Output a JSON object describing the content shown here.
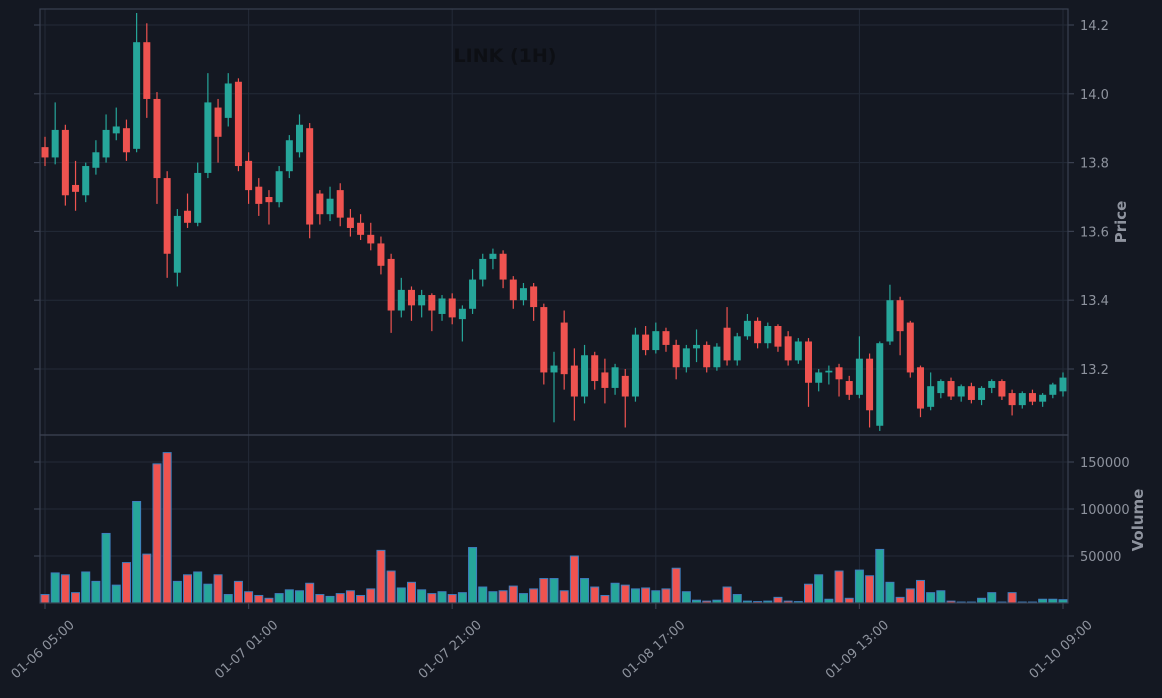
{
  "title": "LINK (1H)",
  "colors": {
    "background": "#141822",
    "up": "#26a69a",
    "down": "#ef5350",
    "grid": "#232a38",
    "frame": "#3a4050",
    "tick_label": "#8e939e",
    "axis_label": "#8e939e",
    "title_color": "#0d0f14",
    "volume_bar_edge": "#3f7fbf"
  },
  "price_axis": {
    "label": "Price",
    "ticks": [
      14.2,
      14.0,
      13.8,
      13.6,
      13.4,
      13.2
    ],
    "range": [
      13.0,
      14.245
    ]
  },
  "volume_axis": {
    "label": "Volume",
    "ticks": [
      150000,
      100000,
      50000
    ],
    "range": [
      0,
      175000
    ]
  },
  "x_axis": {
    "tick_indices": [
      0,
      20,
      40,
      60,
      80,
      100
    ],
    "tick_labels": [
      "01-06 05:00",
      "01-07 01:00",
      "01-07 21:00",
      "01-08 17:00",
      "01-09 13:00",
      "01-10 09:00"
    ]
  },
  "chart_data": {
    "type": "candlestick",
    "symbol": "LINK",
    "interval": "1H",
    "start_time": "01-06 05:00",
    "end_time": "01-10 09:00",
    "panels": [
      "price",
      "volume"
    ],
    "ohlcv_columns": [
      "open",
      "high",
      "low",
      "close",
      "volume"
    ],
    "ohlcv": [
      [
        13.845,
        13.875,
        13.79,
        13.815,
        9000
      ],
      [
        13.815,
        13.975,
        13.795,
        13.895,
        32000
      ],
      [
        13.895,
        13.91,
        13.675,
        13.705,
        30000
      ],
      [
        13.735,
        13.805,
        13.66,
        13.715,
        11000
      ],
      [
        13.705,
        13.8,
        13.685,
        13.79,
        33000
      ],
      [
        13.785,
        13.865,
        13.765,
        13.83,
        23000
      ],
      [
        13.815,
        13.94,
        13.8,
        13.895,
        74000
      ],
      [
        13.885,
        13.96,
        13.865,
        13.905,
        19000
      ],
      [
        13.9,
        13.925,
        13.805,
        13.83,
        43000
      ],
      [
        13.84,
        14.235,
        13.83,
        14.15,
        108000
      ],
      [
        14.15,
        14.205,
        13.93,
        13.985,
        52000
      ],
      [
        13.985,
        14.005,
        13.68,
        13.755,
        148000
      ],
      [
        13.755,
        13.775,
        13.465,
        13.535,
        160000
      ],
      [
        13.48,
        13.665,
        13.44,
        13.645,
        23000
      ],
      [
        13.66,
        13.71,
        13.61,
        13.625,
        30000
      ],
      [
        13.625,
        13.8,
        13.615,
        13.77,
        33000
      ],
      [
        13.77,
        14.06,
        13.755,
        13.975,
        20000
      ],
      [
        13.96,
        13.985,
        13.8,
        13.875,
        30000
      ],
      [
        13.93,
        14.06,
        13.905,
        14.03,
        9000
      ],
      [
        14.035,
        14.045,
        13.775,
        13.79,
        23000
      ],
      [
        13.805,
        13.83,
        13.68,
        13.72,
        12000
      ],
      [
        13.73,
        13.755,
        13.645,
        13.68,
        8000
      ],
      [
        13.7,
        13.72,
        13.62,
        13.685,
        5000
      ],
      [
        13.685,
        13.79,
        13.67,
        13.775,
        10000
      ],
      [
        13.775,
        13.88,
        13.755,
        13.865,
        14000
      ],
      [
        13.83,
        13.94,
        13.815,
        13.91,
        13000
      ],
      [
        13.9,
        13.915,
        13.58,
        13.62,
        21000
      ],
      [
        13.71,
        13.72,
        13.62,
        13.65,
        9000
      ],
      [
        13.65,
        13.73,
        13.63,
        13.695,
        7000
      ],
      [
        13.72,
        13.74,
        13.615,
        13.64,
        10000
      ],
      [
        13.64,
        13.665,
        13.585,
        13.61,
        13000
      ],
      [
        13.625,
        13.65,
        13.575,
        13.59,
        8000
      ],
      [
        13.59,
        13.625,
        13.545,
        13.565,
        15000
      ],
      [
        13.565,
        13.585,
        13.475,
        13.5,
        56000
      ],
      [
        13.52,
        13.535,
        13.305,
        13.37,
        34000
      ],
      [
        13.37,
        13.465,
        13.35,
        13.43,
        16000
      ],
      [
        13.43,
        13.44,
        13.34,
        13.385,
        22000
      ],
      [
        13.385,
        13.43,
        13.35,
        13.415,
        14000
      ],
      [
        13.415,
        13.42,
        13.31,
        13.37,
        10000
      ],
      [
        13.36,
        13.415,
        13.34,
        13.405,
        12000
      ],
      [
        13.405,
        13.42,
        13.33,
        13.35,
        9000
      ],
      [
        13.345,
        13.385,
        13.28,
        13.375,
        11000
      ],
      [
        13.375,
        13.49,
        13.36,
        13.46,
        59000
      ],
      [
        13.46,
        13.535,
        13.44,
        13.52,
        17000
      ],
      [
        13.52,
        13.55,
        13.49,
        13.535,
        12000
      ],
      [
        13.535,
        13.545,
        13.435,
        13.46,
        13000
      ],
      [
        13.46,
        13.47,
        13.375,
        13.4,
        18000
      ],
      [
        13.4,
        13.45,
        13.385,
        13.435,
        10000
      ],
      [
        13.44,
        13.45,
        13.34,
        13.38,
        15000
      ],
      [
        13.38,
        13.39,
        13.155,
        13.19,
        26000
      ],
      [
        13.19,
        13.25,
        13.045,
        13.21,
        26000
      ],
      [
        13.335,
        13.37,
        13.14,
        13.185,
        13000
      ],
      [
        13.21,
        13.26,
        13.05,
        13.12,
        50000
      ],
      [
        13.12,
        13.27,
        13.1,
        13.24,
        26000
      ],
      [
        13.24,
        13.25,
        13.14,
        13.165,
        17000
      ],
      [
        13.19,
        13.23,
        13.1,
        13.145,
        8000
      ],
      [
        13.145,
        13.215,
        13.125,
        13.205,
        21000
      ],
      [
        13.18,
        13.2,
        13.03,
        13.12,
        19000
      ],
      [
        13.12,
        13.32,
        13.105,
        13.3,
        15000
      ],
      [
        13.3,
        13.325,
        13.24,
        13.255,
        16000
      ],
      [
        13.255,
        13.335,
        13.245,
        13.31,
        13000
      ],
      [
        13.31,
        13.32,
        13.25,
        13.27,
        15000
      ],
      [
        13.27,
        13.285,
        13.17,
        13.205,
        37000
      ],
      [
        13.205,
        13.27,
        13.19,
        13.26,
        12000
      ],
      [
        13.26,
        13.315,
        13.22,
        13.27,
        3000
      ],
      [
        13.27,
        13.28,
        13.19,
        13.205,
        2000
      ],
      [
        13.205,
        13.275,
        13.195,
        13.265,
        3000
      ],
      [
        13.32,
        13.38,
        13.21,
        13.225,
        17000
      ],
      [
        13.225,
        13.305,
        13.21,
        13.295,
        9000
      ],
      [
        13.295,
        13.36,
        13.285,
        13.34,
        2000
      ],
      [
        13.34,
        13.35,
        13.26,
        13.275,
        1500
      ],
      [
        13.275,
        13.335,
        13.26,
        13.325,
        2000
      ],
      [
        13.325,
        13.33,
        13.25,
        13.265,
        6000
      ],
      [
        13.295,
        13.31,
        13.21,
        13.225,
        2000
      ],
      [
        13.225,
        13.29,
        13.215,
        13.28,
        1500
      ],
      [
        13.28,
        13.29,
        13.09,
        13.16,
        20000
      ],
      [
        13.16,
        13.2,
        13.135,
        13.19,
        30000
      ],
      [
        13.19,
        13.21,
        13.155,
        13.195,
        4000
      ],
      [
        13.205,
        13.215,
        13.12,
        13.17,
        34000
      ],
      [
        13.165,
        13.18,
        13.11,
        13.125,
        5000
      ],
      [
        13.125,
        13.295,
        13.115,
        13.23,
        35000
      ],
      [
        13.23,
        13.245,
        13.03,
        13.08,
        29000
      ],
      [
        13.035,
        13.28,
        13.02,
        13.275,
        57000
      ],
      [
        13.28,
        13.445,
        13.27,
        13.4,
        22000
      ],
      [
        13.4,
        13.41,
        13.24,
        13.31,
        6000
      ],
      [
        13.335,
        13.34,
        13.175,
        13.19,
        15000
      ],
      [
        13.205,
        13.21,
        13.06,
        13.085,
        24000
      ],
      [
        13.09,
        13.19,
        13.08,
        13.15,
        11000
      ],
      [
        13.13,
        13.17,
        13.115,
        13.165,
        13000
      ],
      [
        13.165,
        13.175,
        13.11,
        13.12,
        2000
      ],
      [
        13.12,
        13.155,
        13.105,
        13.15,
        1000
      ],
      [
        13.15,
        13.16,
        13.1,
        13.11,
        1000
      ],
      [
        13.11,
        13.15,
        13.095,
        13.145,
        5000
      ],
      [
        13.145,
        13.17,
        13.13,
        13.165,
        11000
      ],
      [
        13.165,
        13.17,
        13.11,
        13.12,
        1000
      ],
      [
        13.13,
        13.14,
        13.065,
        13.095,
        11000
      ],
      [
        13.095,
        13.135,
        13.085,
        13.13,
        1000
      ],
      [
        13.13,
        13.14,
        13.095,
        13.105,
        1000
      ],
      [
        13.105,
        13.13,
        13.09,
        13.125,
        4000
      ],
      [
        13.125,
        13.16,
        13.115,
        13.155,
        4000
      ],
      [
        13.135,
        13.19,
        13.12,
        13.175,
        3500
      ]
    ]
  }
}
